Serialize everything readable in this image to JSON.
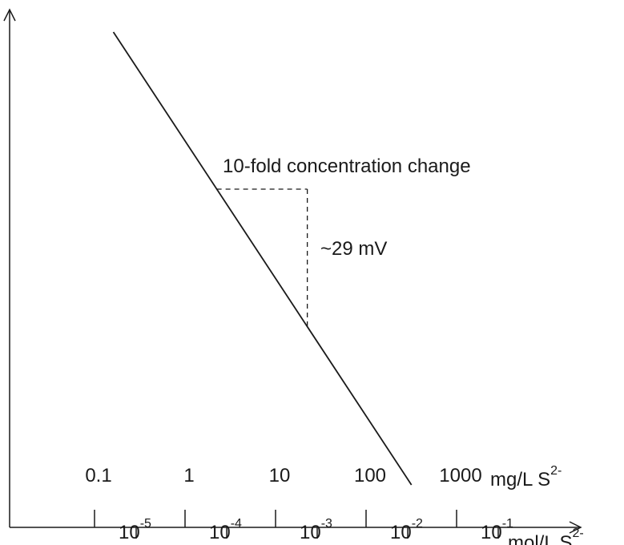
{
  "chart_data": {
    "type": "line",
    "title": "",
    "xlabel": "",
    "ylabel": "",
    "x_scale": "log",
    "grid": false,
    "legend": "none",
    "axes": {
      "top_tick_labels": [
        "0.1",
        "1",
        "10",
        "100",
        "1000"
      ],
      "top_unit": {
        "text": "mg/L S",
        "sup": "2-"
      },
      "bottom_tick_labels": [
        {
          "base": "10",
          "exp": "-5"
        },
        {
          "base": "10",
          "exp": "-4"
        },
        {
          "base": "10",
          "exp": "-3"
        },
        {
          "base": "10",
          "exp": "-2"
        },
        {
          "base": "10",
          "exp": "-1"
        }
      ],
      "bottom_unit": {
        "text": "mol/L S",
        "sup": "2-"
      }
    },
    "series": [
      {
        "x_mol_per_L": [
          5.6e-06,
          0.011
        ],
        "note_slope_mV_per_decade": -29
      }
    ],
    "annotations": {
      "horizontal": "10-fold concentration change",
      "vertical": "~29 mV"
    },
    "colors": {
      "line": "#1a1a1a",
      "text": "#1a1a1a"
    }
  }
}
